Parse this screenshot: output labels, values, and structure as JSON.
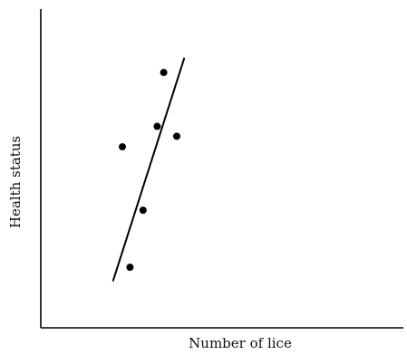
{
  "chart_data": {
    "type": "scatter",
    "title": "",
    "xlabel": "Number of lice",
    "ylabel": "Health status",
    "xlim": [
      0,
      100
    ],
    "ylim": [
      0,
      100
    ],
    "grid": false,
    "legend": "none",
    "series": [
      {
        "points": [
          {
            "x": 22.5,
            "y": 56.8
          },
          {
            "x": 24.6,
            "y": 19.0
          },
          {
            "x": 28.2,
            "y": 36.9
          },
          {
            "x": 32.1,
            "y": 63.2
          },
          {
            "x": 33.9,
            "y": 80.1
          },
          {
            "x": 37.5,
            "y": 60.1
          }
        ]
      }
    ],
    "trendline": {
      "x": [
        19.9,
        39.6
      ],
      "y": [
        14.6,
        84.7
      ]
    },
    "colors": {
      "marker": "#000000",
      "line": "#000000",
      "axis": "#000000"
    }
  }
}
